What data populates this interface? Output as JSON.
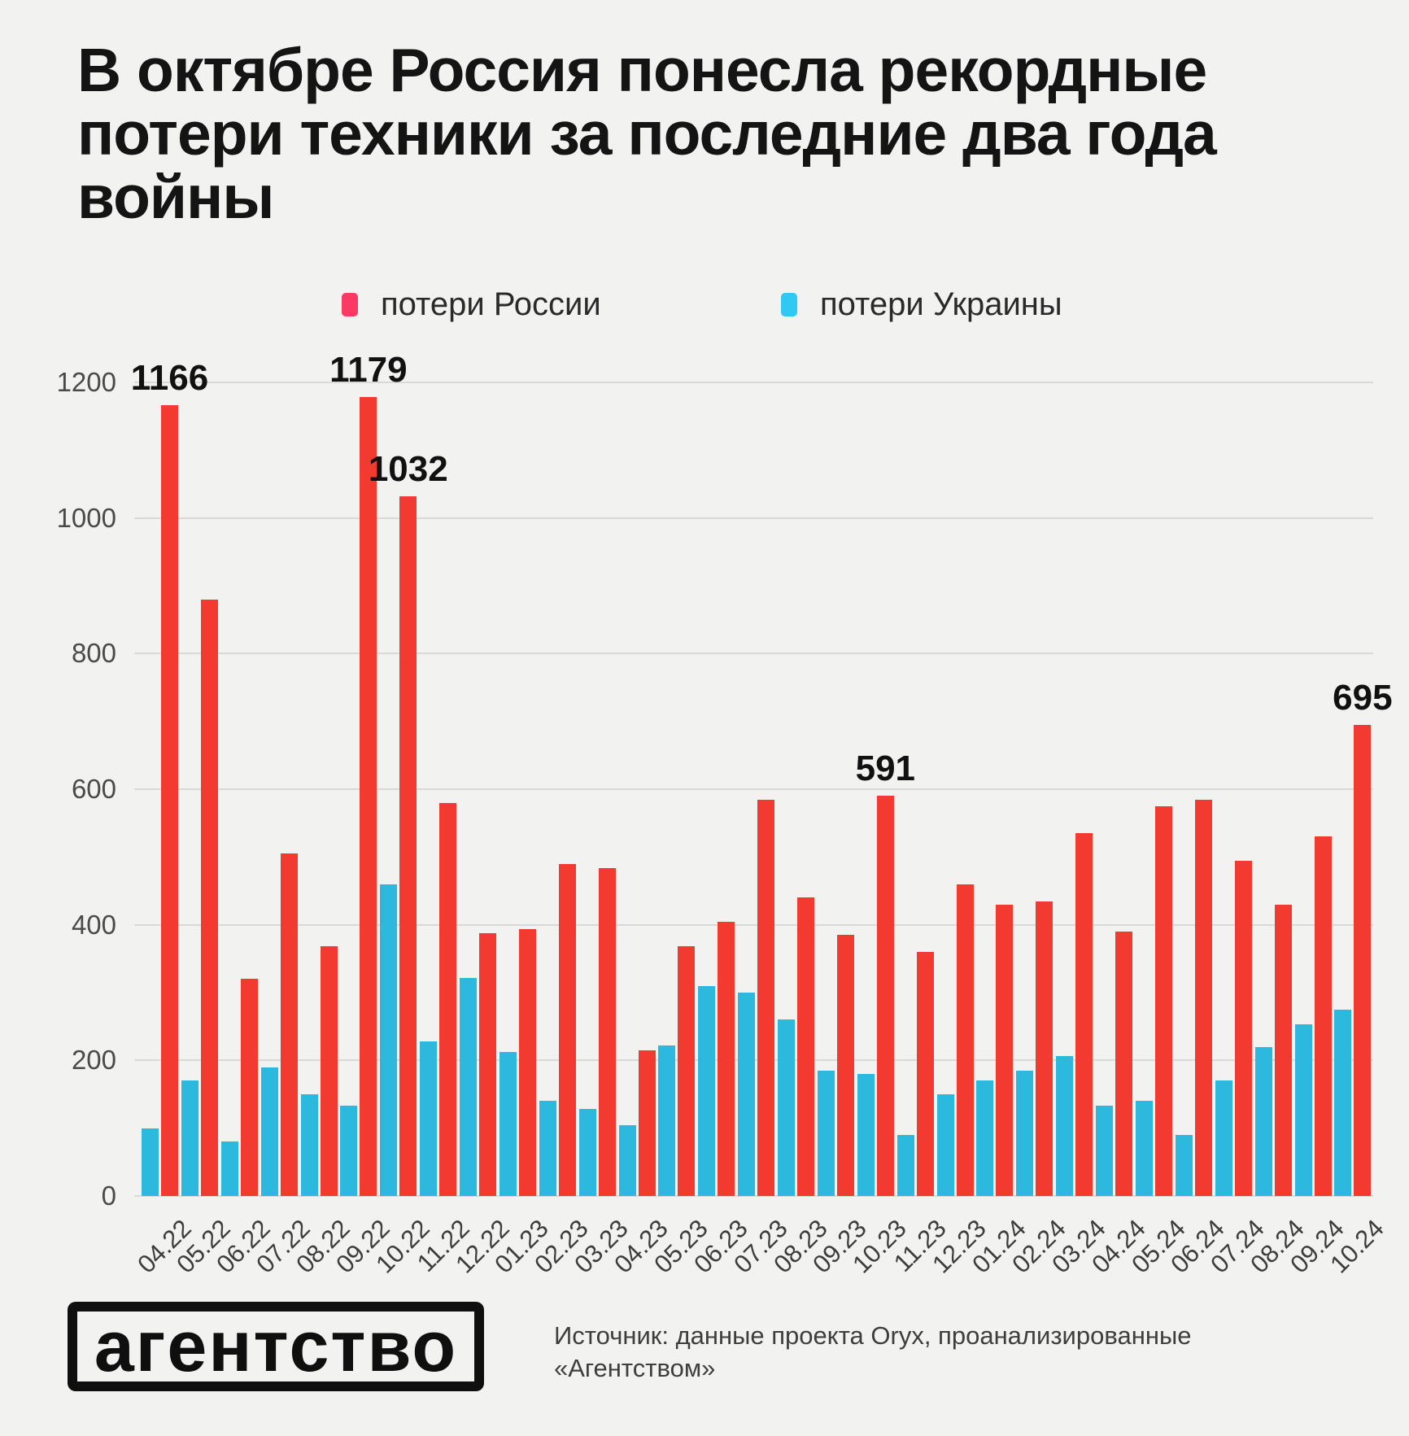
{
  "title": {
    "lines": [
      "В октябре Россия понесла рекордные",
      "потери техники за последние два года",
      "войны"
    ]
  },
  "legend": [
    {
      "label": "потери России",
      "color": "#fa3a64"
    },
    {
      "label": "потери Украины",
      "color": "#30c9f4"
    }
  ],
  "chart_data": {
    "type": "bar",
    "categories": [
      "04.22",
      "05.22",
      "06.22",
      "07.22",
      "08.22",
      "09.22",
      "10.22",
      "11.22",
      "12.22",
      "01.23",
      "02.23",
      "03.23",
      "04.23",
      "05.23",
      "06.23",
      "07.23",
      "08.23",
      "09.23",
      "10.23",
      "11.23",
      "12.23",
      "01.24",
      "02.24",
      "03.24",
      "04.24",
      "05.24",
      "06.24",
      "07.24",
      "08.24",
      "09.24",
      "10.24"
    ],
    "series": [
      {
        "name": "потери Украины",
        "color": "#2db9de",
        "values": [
          100,
          170,
          80,
          190,
          150,
          133,
          460,
          228,
          322,
          212,
          140,
          128,
          105,
          222,
          310,
          300,
          260,
          185,
          180,
          90,
          150,
          170,
          185,
          207,
          133,
          140,
          90,
          170,
          220,
          253,
          275
        ]
      },
      {
        "name": "потери России",
        "color": "#f23a30",
        "values": [
          1166,
          880,
          320,
          505,
          368,
          1179,
          1032,
          580,
          388,
          394,
          490,
          484,
          215,
          368,
          405,
          585,
          440,
          385,
          591,
          360,
          460,
          430,
          435,
          535,
          390,
          575,
          585,
          495,
          430,
          530,
          695
        ]
      }
    ],
    "annotations": [
      {
        "category": "04.22",
        "series": "потери России",
        "text": "1166"
      },
      {
        "category": "09.22",
        "series": "потери России",
        "text": "1179"
      },
      {
        "category": "10.22",
        "series": "потери России",
        "text": "1032"
      },
      {
        "category": "10.23",
        "series": "потери России",
        "text": "591"
      },
      {
        "category": "10.24",
        "series": "потери России",
        "text": "695"
      }
    ],
    "title": "В октябре Россия понесла рекордные потери техники за последние два года войны",
    "xlabel": "",
    "ylabel": "",
    "ylim": [
      0,
      1200
    ],
    "ytick_step": 200,
    "grid": "horizontal",
    "legend_position": "top"
  },
  "footer": {
    "logo": "агентство",
    "source_line1": "Источник: данные проекта Oryx, проанализированные",
    "source_line2": "«Агентством»"
  }
}
